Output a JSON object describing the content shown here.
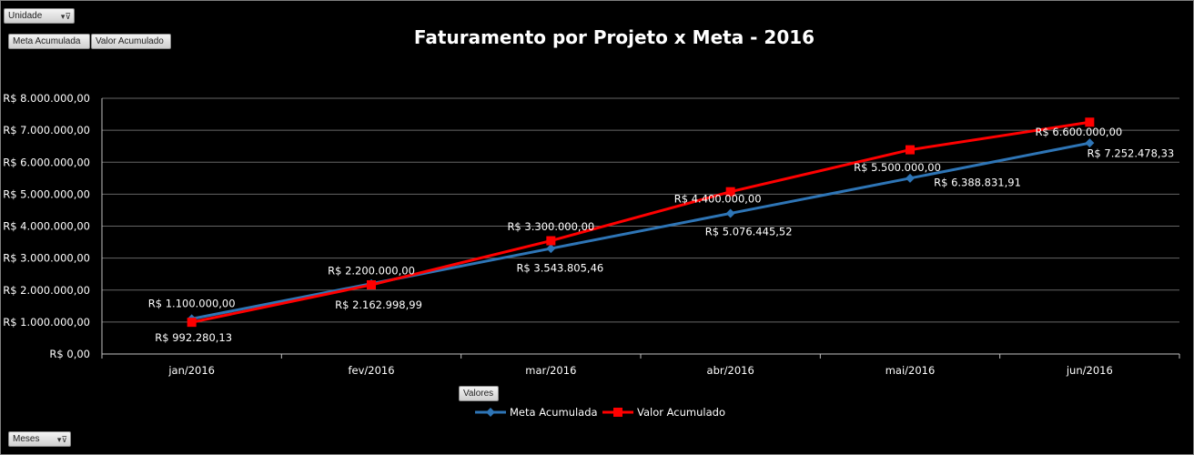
{
  "controls": {
    "report_filter_label": "Unidade",
    "row_field_label": "Meses",
    "values_field_label": "Valores",
    "series_buttons": [
      "Meta Acumulada",
      "Valor Acumulado"
    ],
    "filter_icon": "filter-dropdown-icon"
  },
  "chart_data": {
    "type": "line",
    "title": "Faturamento por Projeto x Meta - 2016",
    "categories": [
      "jan/2016",
      "fev/2016",
      "mar/2016",
      "abr/2016",
      "mai/2016",
      "jun/2016"
    ],
    "y_ticks": [
      "R$ 0,00",
      "R$ 1.000.000,00",
      "R$ 2.000.000,00",
      "R$ 3.000.000,00",
      "R$ 4.000.000,00",
      "R$ 5.000.000,00",
      "R$ 6.000.000,00",
      "R$ 7.000.000,00",
      "R$ 8.000.000,00"
    ],
    "ylim": [
      0,
      8000000
    ],
    "grid": true,
    "legend_position": "bottom",
    "series": [
      {
        "name": "Meta Acumulada",
        "color": "#2e75b6",
        "marker": "diamond",
        "values": [
          1100000,
          2200000,
          3300000,
          4400000,
          5500000,
          6600000
        ],
        "labels": [
          "R$ 1.100.000,00",
          "R$ 2.200.000,00",
          "R$ 3.300.000,00",
          "R$ 4.400.000,00",
          "R$ 5.500.000,00",
          "R$ 6.600.000,00"
        ]
      },
      {
        "name": "Valor Acumulado",
        "color": "#ff0000",
        "marker": "square",
        "values": [
          992280.13,
          2162998.99,
          3543805.46,
          5076445.52,
          6388831.91,
          7252478.33
        ],
        "labels": [
          "R$ 992.280,13",
          "R$ 2.162.998,99",
          "R$ 3.543.805,46",
          "R$ 5.076.445,52",
          "R$ 6.388.831,91",
          "R$ 7.252.478,33"
        ]
      }
    ]
  }
}
